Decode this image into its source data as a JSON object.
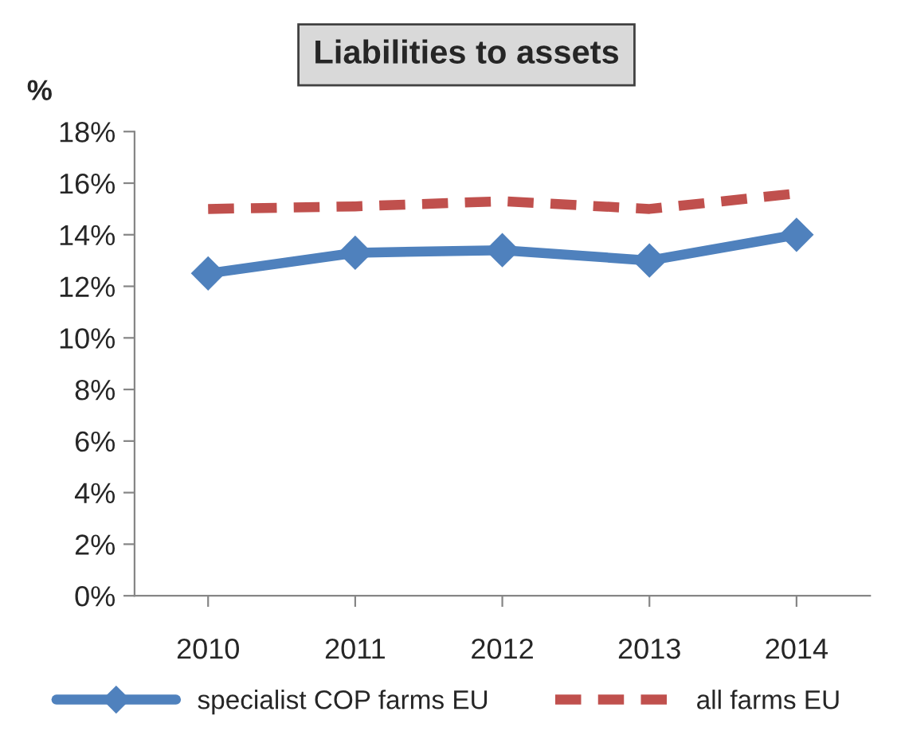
{
  "chart_data": {
    "type": "line",
    "title": "Liabilities to assets",
    "ylabel": "%",
    "categories": [
      "2010",
      "2011",
      "2012",
      "2013",
      "2014"
    ],
    "series": [
      {
        "name": "specialist COP farms EU",
        "color": "#4f81bd",
        "values": [
          12.5,
          13.3,
          13.4,
          13.0,
          14.0
        ],
        "marker": "diamond",
        "line_style": "solid"
      },
      {
        "name": "all farms EU",
        "color": "#c0504d",
        "values": [
          15.0,
          15.1,
          15.3,
          15.0,
          15.6
        ],
        "marker": "none",
        "line_style": "dashed"
      }
    ],
    "ylim": [
      0,
      18
    ],
    "yticks": [
      {
        "value": 0,
        "label": "0%"
      },
      {
        "value": 2,
        "label": "2%"
      },
      {
        "value": 4,
        "label": "4%"
      },
      {
        "value": 6,
        "label": "6%"
      },
      {
        "value": 8,
        "label": "8%"
      },
      {
        "value": 10,
        "label": "10%"
      },
      {
        "value": 12,
        "label": "12%"
      },
      {
        "value": 14,
        "label": "14%"
      },
      {
        "value": 16,
        "label": "16%"
      },
      {
        "value": 18,
        "label": "18%"
      }
    ],
    "grid": false,
    "legend": "bottom"
  }
}
